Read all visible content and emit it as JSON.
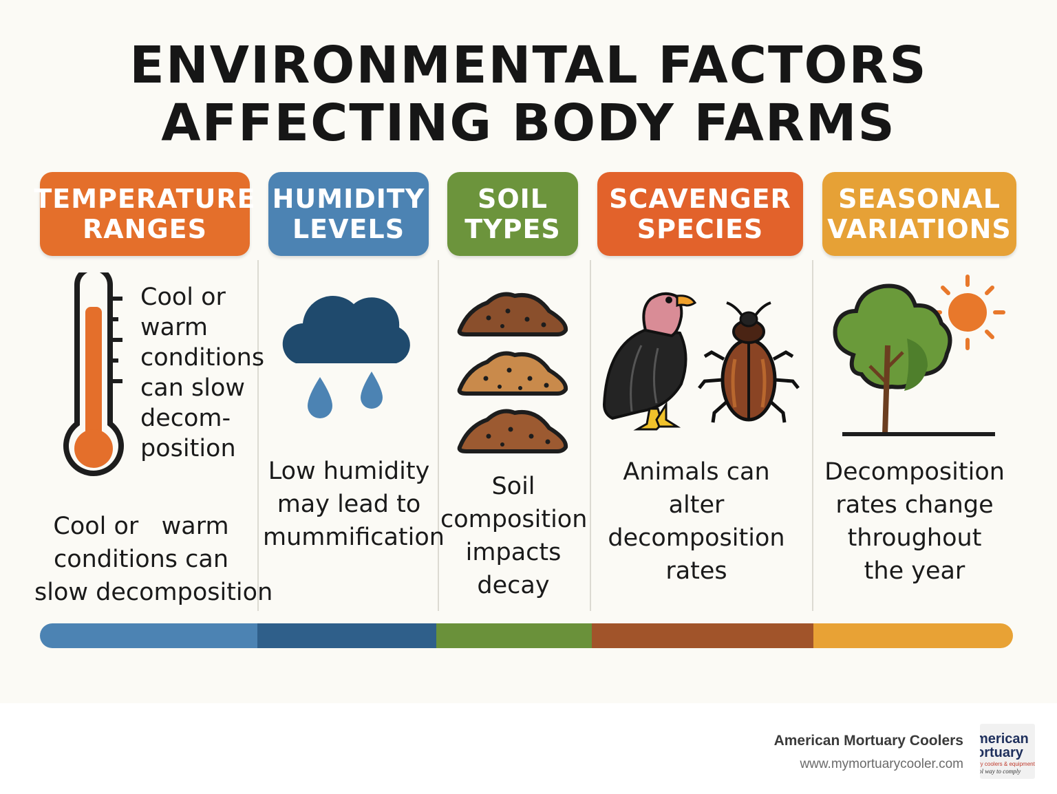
{
  "title": {
    "line1": "ENVIRONMENTAL FACTORS",
    "line2": "AFFECTING BODY FARMS"
  },
  "colors": {
    "temperature": "#e46f2b",
    "humidity": "#4c83b3",
    "soil": "#6c943c",
    "scavenger": "#e2622b",
    "seasonal": "#e6a136",
    "bar_blue": "#4c83b3",
    "bar_navy": "#2f5f8a",
    "bar_green": "#6a913a",
    "bar_brown": "#a1542a",
    "bar_orange": "#e8a235"
  },
  "factors": [
    {
      "key": "temperature",
      "title_lines": [
        "TEMPERATURE",
        "RANGES"
      ],
      "icon": "thermometer-icon",
      "side_lines": [
        "Cool or",
        "warm",
        "conditions",
        "can slow",
        "decom-",
        "position"
      ],
      "desc_lines": [
        "Cool or   warm",
        "conditions can",
        "slow decomposition"
      ]
    },
    {
      "key": "humidity",
      "title_lines": [
        "HUMIDITY",
        "LEVELS"
      ],
      "icon": "rain-cloud-icon",
      "desc_lines": [
        "Low humidity",
        "may lead to",
        "mummification"
      ]
    },
    {
      "key": "soil",
      "title_lines": [
        "SOIL",
        "TYPES"
      ],
      "icon": "soil-mounds-icon",
      "desc_lines": [
        "Soil",
        "composition",
        "impacts",
        "decay"
      ]
    },
    {
      "key": "scavenger",
      "title_lines": [
        "SCAVENGER",
        "SPECIES"
      ],
      "icon": "vulture-beetle-icon",
      "desc_lines": [
        "Animals can",
        "alter",
        "decomposition",
        "rates"
      ]
    },
    {
      "key": "seasonal",
      "title_lines": [
        "SEASONAL",
        "VARIATIONS"
      ],
      "icon": "tree-sun-icon",
      "desc_lines": [
        "Decomposition",
        "rates change",
        "throughout",
        "the year"
      ]
    }
  ],
  "footer": {
    "brand": "American Mortuary Coolers",
    "url": "www.mymortuarycooler.com",
    "logo_line1": "merican",
    "logo_line2": "ortuary",
    "logo_line3": "ry coolers & equipment",
    "logo_line4": "ol way to comply"
  }
}
